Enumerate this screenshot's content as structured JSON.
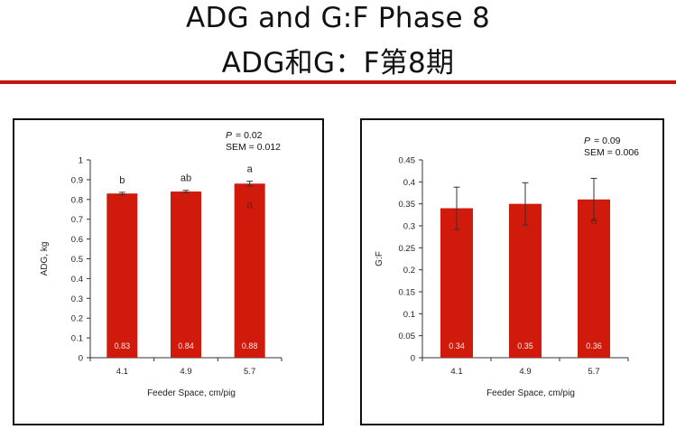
{
  "slide": {
    "title_en": "ADG and G:F Phase 8",
    "title_zh": "ADG和G：F第8期",
    "accent_color": "#c0180c"
  },
  "chart_data": [
    {
      "type": "bar",
      "categories": [
        "4.1",
        "4.9",
        "5.7"
      ],
      "values": [
        0.83,
        0.84,
        0.88
      ],
      "data_labels": [
        "0.83",
        "0.84",
        "0.88"
      ],
      "error": [
        0.006,
        0.006,
        0.012
      ],
      "letters": [
        "b",
        "ab",
        "a"
      ],
      "inner_letters": [
        "",
        "",
        "a"
      ],
      "xlabel": "Feeder Space, cm/pig",
      "ylabel": "ADG, kg",
      "ylim": [
        0,
        1
      ],
      "yticks": [
        "0",
        "0.1",
        "0.2",
        "0.3",
        "0.4",
        "0.5",
        "0.6",
        "0.7",
        "0.8",
        "0.9",
        "1"
      ],
      "stats": {
        "p_label": "P",
        "p_value": "= 0.02",
        "sem": "SEM = 0.012"
      },
      "bar_color": "#d01a0c",
      "grid": false,
      "legend": "none"
    },
    {
      "type": "bar",
      "categories": [
        "4.1",
        "4.9",
        "5.7"
      ],
      "values": [
        0.34,
        0.35,
        0.36
      ],
      "data_labels": [
        "0.34",
        "0.35",
        "0.36"
      ],
      "error": [
        0.048,
        0.048,
        0.048
      ],
      "letters": [
        "",
        "",
        ""
      ],
      "inner_letters": [
        "",
        "",
        "a"
      ],
      "xlabel": "Feeder Space, cm/pig",
      "ylabel": "G:F",
      "ylim": [
        0,
        0.45
      ],
      "yticks": [
        "0",
        "0.05",
        "0.1",
        "0.15",
        "0.2",
        "0.25",
        "0.3",
        "0.35",
        "0.4",
        "0.45"
      ],
      "stats": {
        "p_label": "P",
        "p_value": "= 0.09",
        "sem": "SEM = 0.006"
      },
      "bar_color": "#d01a0c",
      "grid": false,
      "legend": "none"
    }
  ]
}
